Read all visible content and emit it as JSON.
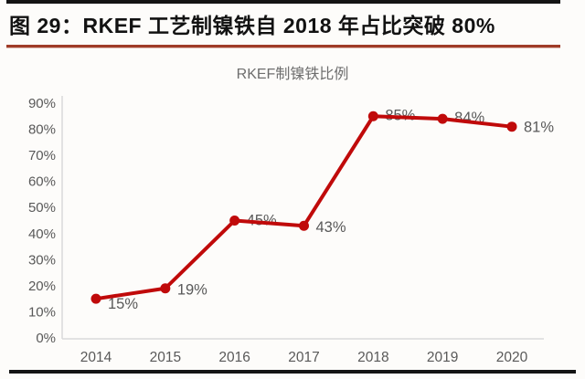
{
  "figure": {
    "caption": "图 29：RKEF 工艺制镍铁自 2018 年占比突破 80%"
  },
  "chart_data": {
    "type": "line",
    "title": "RKEF制镍铁比例",
    "categories": [
      "2014",
      "2015",
      "2016",
      "2017",
      "2018",
      "2019",
      "2020"
    ],
    "series": [
      {
        "name": "RKEF制镍铁比例",
        "values": [
          15,
          19,
          45,
          43,
          85,
          84,
          81
        ]
      }
    ],
    "data_labels": [
      "15%",
      "19%",
      "45%",
      "43%",
      "85%",
      "84%",
      "81%"
    ],
    "xlabel": "",
    "ylabel": "",
    "ylim": [
      0,
      90
    ],
    "y_ticks": [
      "0%",
      "10%",
      "20%",
      "30%",
      "40%",
      "50%",
      "60%",
      "70%",
      "80%",
      "90%"
    ],
    "grid": false,
    "legend_position": "none",
    "colors": {
      "line": "#c00a0a",
      "marker": "#c00a0a",
      "data_label": "#595959",
      "tick_label": "#595959",
      "axis_line": "#d9d9d9",
      "title": "#6e6e6e",
      "caption_divider": "#a03c28",
      "border": "#141414"
    }
  }
}
